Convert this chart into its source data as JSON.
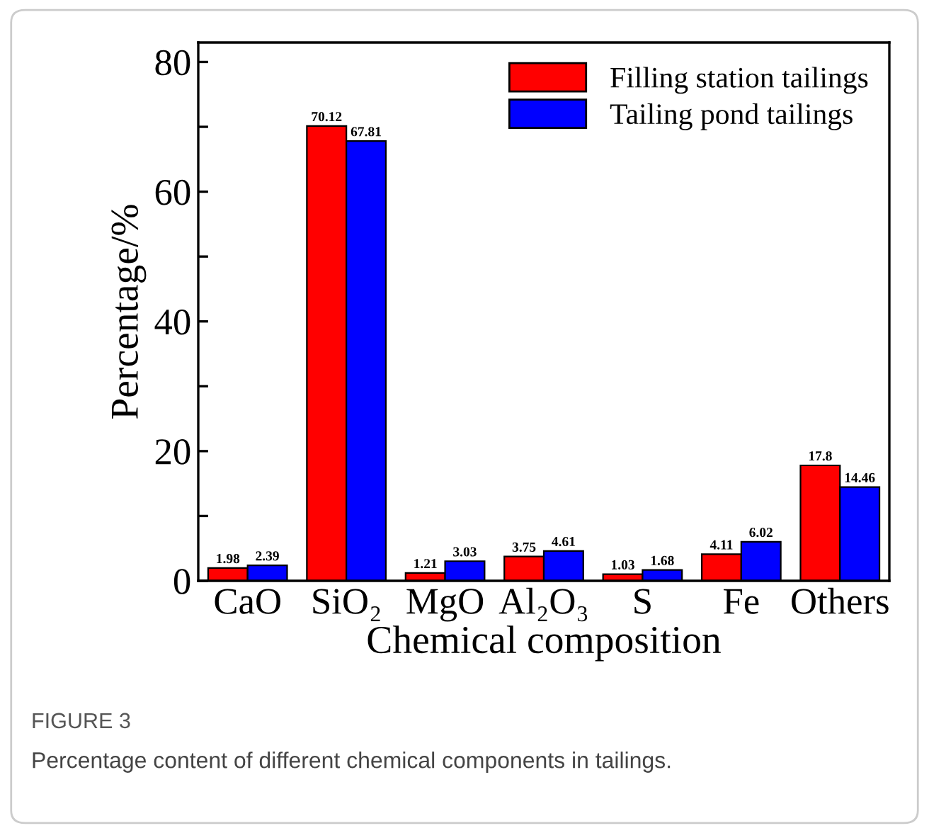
{
  "chart_data": {
    "type": "bar",
    "xlabel": "Chemical composition",
    "ylabel": "Percentage/%",
    "categories": [
      "CaO",
      "SiO₂",
      "MgO",
      "Al₂O₃",
      "S",
      "Fe",
      "Others"
    ],
    "series": [
      {
        "name": "Filling station tailings",
        "color": "#ff0000",
        "values": [
          1.98,
          70.12,
          1.21,
          3.75,
          1.03,
          4.11,
          17.8
        ],
        "value_labels": [
          "1.98",
          "70.12",
          "1.21",
          "3.75",
          "1.03",
          "4.11",
          "17.8"
        ]
      },
      {
        "name": "Tailing pond tailings",
        "color": "#0000ff",
        "values": [
          2.39,
          67.81,
          3.03,
          4.61,
          1.68,
          6.02,
          14.46
        ],
        "value_labels": [
          "2.39",
          "67.81",
          "3.03",
          "4.61",
          "1.68",
          "6.02",
          "14.46"
        ]
      }
    ],
    "ylim": [
      0,
      83
    ],
    "yticks": [
      0,
      {
        "value": 10,
        "label": null
      },
      20,
      {
        "value": 30,
        "label": null
      },
      40,
      {
        "value": 50,
        "label": null
      },
      60,
      {
        "value": 70,
        "label": null
      },
      80
    ],
    "grid": false,
    "legend": "top right",
    "annotations": [
      "FIGURE 3",
      "Percentage content of different chemical components in tailings."
    ]
  }
}
